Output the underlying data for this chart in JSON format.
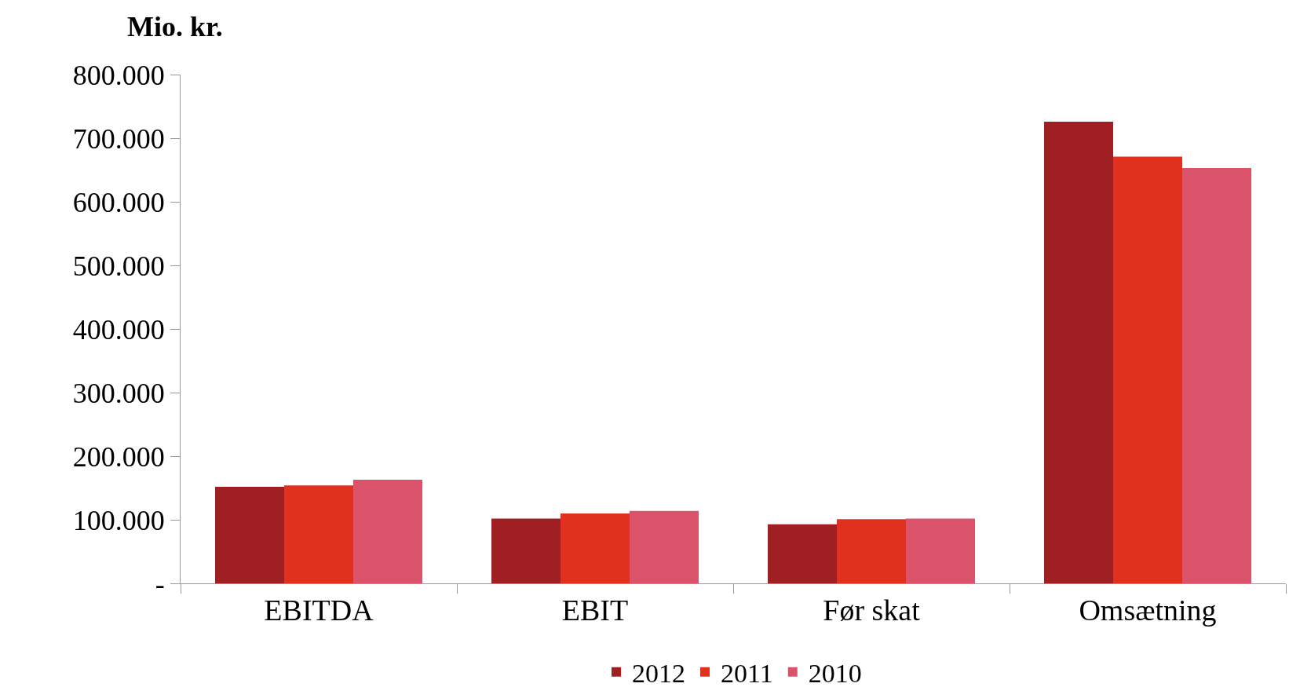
{
  "chart_data": {
    "type": "bar",
    "ylabel": "Mio. kr.",
    "categories": [
      "EBITDA",
      "EBIT",
      "Før skat",
      "Omsætning"
    ],
    "series": [
      {
        "name": "2012",
        "color": "#a01f22",
        "values": [
          152000,
          102000,
          93000,
          726000
        ]
      },
      {
        "name": "2011",
        "color": "#e0301e",
        "values": [
          154000,
          110000,
          101000,
          671000
        ]
      },
      {
        "name": "2010",
        "color": "#db536a",
        "values": [
          163000,
          114000,
          102000,
          653000
        ]
      }
    ],
    "ylim": [
      0,
      800000
    ],
    "yticks": [
      {
        "value": 0,
        "label": "-"
      },
      {
        "value": 100000,
        "label": "100.000"
      },
      {
        "value": 200000,
        "label": "200.000"
      },
      {
        "value": 300000,
        "label": "300.000"
      },
      {
        "value": 400000,
        "label": "400.000"
      },
      {
        "value": 500000,
        "label": "500.000"
      },
      {
        "value": 600000,
        "label": "600.000"
      },
      {
        "value": 700000,
        "label": "700.000"
      },
      {
        "value": 800000,
        "label": "800.000"
      }
    ],
    "grid": false,
    "legend": "bottom"
  }
}
